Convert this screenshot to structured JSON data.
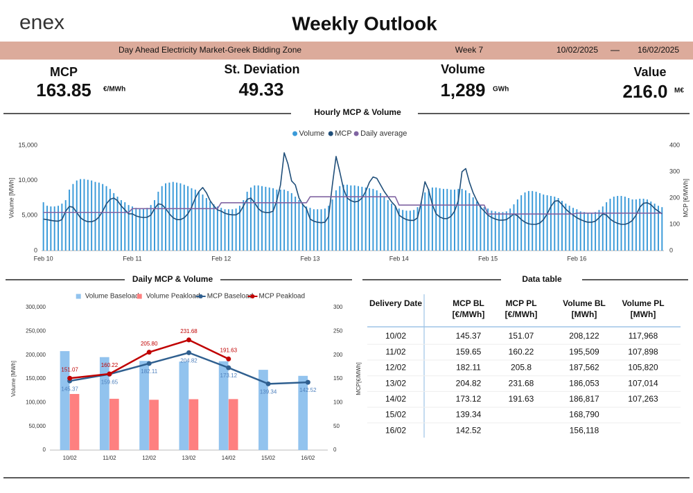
{
  "header": {
    "logo": "enex",
    "title": "Weekly Outlook",
    "market": "Day Ahead Electricity Market-Greek Bidding Zone",
    "week": "Week 7",
    "date_from": "10/02/2025",
    "date_to": "16/02/2025"
  },
  "kpis": [
    {
      "label": "MCP",
      "value": "163.85",
      "unit": "€/MWh"
    },
    {
      "label": "St. Deviation",
      "value": "49.33"
    },
    {
      "label": "Volume",
      "value": "1,289",
      "unit": "GWh"
    },
    {
      "label": "Value",
      "value": "216.0",
      "unit": "M€"
    }
  ],
  "chart_data": [
    {
      "type": "combo",
      "title": "Hourly MCP & Volume",
      "y_label": "Volume [MWh]",
      "y2_label": "MCP [€/MWh]",
      "legend": "top",
      "categories": [
        "Feb 10",
        null,
        null,
        null,
        null,
        null,
        null,
        null,
        null,
        null,
        null,
        null,
        null,
        null,
        null,
        null,
        null,
        null,
        null,
        null,
        null,
        null,
        null,
        null,
        "Feb 11",
        null,
        null,
        null,
        null,
        null,
        null,
        null,
        null,
        null,
        null,
        null,
        null,
        null,
        null,
        null,
        null,
        null,
        null,
        null,
        null,
        null,
        null,
        null,
        "Feb 12",
        null,
        null,
        null,
        null,
        null,
        null,
        null,
        null,
        null,
        null,
        null,
        null,
        null,
        null,
        null,
        null,
        null,
        null,
        null,
        null,
        null,
        null,
        null,
        "Feb 13",
        null,
        null,
        null,
        null,
        null,
        null,
        null,
        null,
        null,
        null,
        null,
        null,
        null,
        null,
        null,
        null,
        null,
        null,
        null,
        null,
        null,
        null,
        null,
        "Feb 14",
        null,
        null,
        null,
        null,
        null,
        null,
        null,
        null,
        null,
        null,
        null,
        null,
        null,
        null,
        null,
        null,
        null,
        null,
        null,
        null,
        null,
        null,
        null,
        "Feb 15",
        null,
        null,
        null,
        null,
        null,
        null,
        null,
        null,
        null,
        null,
        null,
        null,
        null,
        null,
        null,
        null,
        null,
        null,
        null,
        null,
        null,
        null,
        null,
        "Feb 16",
        null,
        null,
        null,
        null,
        null,
        null,
        null,
        null,
        null,
        null,
        null,
        null,
        null,
        null,
        null,
        null,
        null,
        null,
        null,
        null,
        null,
        null,
        null
      ],
      "ylim": [
        0,
        15000
      ],
      "yticks": [
        0,
        {
          "value": 5000,
          "label": "5,000"
        },
        {
          "value": 10000,
          "label": "10,000"
        },
        {
          "value": 15000,
          "label": "15,000"
        }
      ],
      "y2lim": [
        0,
        400
      ],
      "y2ticks": [
        0,
        100,
        200,
        300,
        400
      ],
      "series": [
        {
          "name": "Volume",
          "kind": "bar",
          "color": "#3a9ad9",
          "values": [
            6900,
            6400,
            6300,
            6300,
            6400,
            6700,
            7200,
            8700,
            9500,
            10000,
            10200,
            10200,
            10100,
            10000,
            9800,
            9700,
            9500,
            9200,
            8800,
            8200,
            7700,
            7200,
            6900,
            6500,
            6300,
            6100,
            6000,
            6000,
            6100,
            6500,
            7200,
            8400,
            9200,
            9600,
            9700,
            9800,
            9700,
            9600,
            9400,
            9200,
            8900,
            8700,
            8400,
            8000,
            7500,
            7000,
            6600,
            6300,
            6100,
            5900,
            5900,
            5900,
            6000,
            6400,
            7200,
            8400,
            9000,
            9300,
            9300,
            9200,
            9100,
            9000,
            8900,
            8700,
            8700,
            8700,
            8500,
            8200,
            7700,
            7200,
            6700,
            6300,
            6100,
            5900,
            5900,
            5900,
            6000,
            6400,
            7300,
            8600,
            9200,
            9400,
            9400,
            9300,
            9300,
            9200,
            9100,
            9000,
            8900,
            8800,
            8600,
            8200,
            7700,
            7200,
            6700,
            6300,
            6000,
            5800,
            5700,
            5700,
            5800,
            6200,
            7000,
            8300,
            8800,
            9000,
            9000,
            8900,
            8800,
            8800,
            8700,
            8700,
            8800,
            8800,
            8600,
            8200,
            7600,
            7000,
            6500,
            6200,
            6000,
            5700,
            5600,
            5500,
            5500,
            5600,
            6000,
            6600,
            7300,
            7900,
            8300,
            8500,
            8500,
            8400,
            8200,
            8000,
            7900,
            7800,
            7700,
            7500,
            7100,
            6700,
            6400,
            6100,
            5900,
            5600,
            5500,
            5400,
            5400,
            5500,
            5800,
            6300,
            6900,
            7400,
            7700,
            7800,
            7800,
            7700,
            7500,
            7300,
            7300,
            7400,
            7400,
            7300,
            7000,
            6700,
            6400,
            6200
          ]
        },
        {
          "name": "MCP",
          "kind": "line",
          "axis": "y2",
          "color": "#1f4e79",
          "values": [
            120,
            118,
            115,
            113,
            112,
            118,
            150,
            168,
            165,
            145,
            125,
            115,
            110,
            110,
            115,
            128,
            150,
            178,
            195,
            200,
            190,
            170,
            155,
            140,
            140,
            132,
            128,
            126,
            127,
            135,
            160,
            178,
            175,
            160,
            140,
            125,
            118,
            118,
            125,
            140,
            165,
            200,
            225,
            240,
            220,
            190,
            170,
            155,
            150,
            142,
            138,
            136,
            136,
            145,
            170,
            195,
            200,
            182,
            160,
            148,
            145,
            145,
            150,
            190,
            250,
            372,
            330,
            265,
            250,
            200,
            175,
            160,
            120,
            112,
            108,
            106,
            108,
            130,
            250,
            358,
            300,
            235,
            200,
            190,
            185,
            188,
            200,
            225,
            260,
            280,
            275,
            250,
            225,
            205,
            185,
            170,
            135,
            125,
            118,
            115,
            115,
            125,
            185,
            262,
            230,
            175,
            140,
            128,
            122,
            122,
            130,
            150,
            190,
            300,
            312,
            260,
            220,
            190,
            165,
            150,
            135,
            126,
            120,
            116,
            116,
            118,
            128,
            140,
            132,
            118,
            108,
            102,
            100,
            100,
            105,
            118,
            140,
            168,
            188,
            190,
            175,
            158,
            145,
            135,
            125,
            118,
            112,
            108,
            108,
            112,
            125,
            140,
            135,
            120,
            110,
            104,
            100,
            100,
            105,
            115,
            135,
            165,
            180,
            182,
            175,
            160,
            150,
            140
          ]
        },
        {
          "name": "Daily average",
          "kind": "line",
          "axis": "y2",
          "color": "#8064a2",
          "values": [
            145.37,
            145.37,
            145.37,
            145.37,
            145.37,
            145.37,
            145.37,
            145.37,
            145.37,
            145.37,
            145.37,
            145.37,
            145.37,
            145.37,
            145.37,
            145.37,
            145.37,
            145.37,
            145.37,
            145.37,
            145.37,
            145.37,
            145.37,
            145.37,
            159.65,
            159.65,
            159.65,
            159.65,
            159.65,
            159.65,
            159.65,
            159.65,
            159.65,
            159.65,
            159.65,
            159.65,
            159.65,
            159.65,
            159.65,
            159.65,
            159.65,
            159.65,
            159.65,
            159.65,
            159.65,
            159.65,
            159.65,
            159.65,
            182.11,
            182.11,
            182.11,
            182.11,
            182.11,
            182.11,
            182.11,
            182.11,
            182.11,
            182.11,
            182.11,
            182.11,
            182.11,
            182.11,
            182.11,
            182.11,
            182.11,
            182.11,
            182.11,
            182.11,
            182.11,
            182.11,
            182.11,
            182.11,
            204.82,
            204.82,
            204.82,
            204.82,
            204.82,
            204.82,
            204.82,
            204.82,
            204.82,
            204.82,
            204.82,
            204.82,
            204.82,
            204.82,
            204.82,
            204.82,
            204.82,
            204.82,
            204.82,
            204.82,
            204.82,
            204.82,
            204.82,
            204.82,
            173.12,
            173.12,
            173.12,
            173.12,
            173.12,
            173.12,
            173.12,
            173.12,
            173.12,
            173.12,
            173.12,
            173.12,
            173.12,
            173.12,
            173.12,
            173.12,
            173.12,
            173.12,
            173.12,
            173.12,
            173.12,
            173.12,
            173.12,
            173.12,
            139.34,
            139.34,
            139.34,
            139.34,
            139.34,
            139.34,
            139.34,
            139.34,
            139.34,
            139.34,
            139.34,
            139.34,
            139.34,
            139.34,
            139.34,
            139.34,
            139.34,
            139.34,
            139.34,
            139.34,
            139.34,
            139.34,
            139.34,
            139.34,
            142.52,
            142.52,
            142.52,
            142.52,
            142.52,
            142.52,
            142.52,
            142.52,
            142.52,
            142.52,
            142.52,
            142.52,
            142.52,
            142.52,
            142.52,
            142.52,
            142.52,
            142.52,
            142.52,
            142.52,
            142.52,
            142.52,
            142.52,
            142.52
          ]
        }
      ]
    },
    {
      "type": "combo",
      "title": "Daily MCP & Volume",
      "y_label": "Volume [MWh]",
      "y2_label": "MCP[€/MWh]",
      "legend": "top",
      "categories": [
        "10/02",
        "11/02",
        "12/02",
        "13/02",
        "14/02",
        "15/02",
        "16/02"
      ],
      "ylim": [
        0,
        300000
      ],
      "yticks": [
        0,
        {
          "value": 50000,
          "label": "50,000"
        },
        {
          "value": 100000,
          "label": "100,000"
        },
        {
          "value": 150000,
          "label": "150,000"
        },
        {
          "value": 200000,
          "label": "200,000"
        },
        {
          "value": 250000,
          "label": "250,000"
        },
        {
          "value": 300000,
          "label": "300,000"
        }
      ],
      "y2lim": [
        0,
        300
      ],
      "y2ticks": [
        0,
        50,
        100,
        150,
        200,
        250,
        300
      ],
      "series": [
        {
          "name": "Volume Baseload",
          "kind": "bar",
          "color": "#92c3ee",
          "values": [
            208122,
            195509,
            187562,
            186053,
            186817,
            168790,
            156118
          ]
        },
        {
          "name": "Volume Peakload",
          "kind": "bar",
          "color": "#fe8080",
          "values": [
            117968,
            107898,
            105820,
            107014,
            107263,
            null,
            null
          ]
        },
        {
          "name": "MCP Baseload",
          "kind": "line",
          "axis": "y2",
          "color": "#2f5f8f",
          "markers": true,
          "data_labels": "below",
          "values": [
            145.37,
            159.65,
            182.11,
            204.82,
            173.12,
            139.34,
            142.52
          ]
        },
        {
          "name": "MCP Peakload",
          "kind": "line",
          "axis": "y2",
          "color": "#c00000",
          "markers": true,
          "data_labels": "above",
          "values": [
            151.07,
            160.22,
            205.8,
            231.68,
            191.63,
            null,
            null
          ],
          "value_labels": [
            "151.07",
            "160.22",
            "205.80",
            "231.68",
            "191.63",
            null,
            null
          ]
        }
      ]
    }
  ],
  "table": {
    "title": "Data table",
    "columns": [
      {
        "name": "Delivery Date"
      },
      {
        "name": "MCP BL",
        "unit": "[€/MWh]"
      },
      {
        "name": "MCP PL",
        "unit": "[€/MWh]"
      },
      {
        "name": "Volume BL",
        "unit": "[MWh]"
      },
      {
        "name": "Volume PL",
        "unit": "[MWh]"
      }
    ],
    "rows": [
      [
        "10/02",
        "145.37",
        "151.07",
        "208,122",
        "117,968"
      ],
      [
        "11/02",
        "159.65",
        "160.22",
        "195,509",
        "107,898"
      ],
      [
        "12/02",
        "182.11",
        "205.8",
        "187,562",
        "105,820"
      ],
      [
        "13/02",
        "204.82",
        "231.68",
        "186,053",
        "107,014"
      ],
      [
        "14/02",
        "173.12",
        "191.63",
        "186,817",
        "107,263"
      ],
      [
        "15/02",
        "139.34",
        null,
        "168,790",
        null
      ],
      [
        "16/02",
        "142.52",
        null,
        "156,118",
        null
      ]
    ]
  }
}
